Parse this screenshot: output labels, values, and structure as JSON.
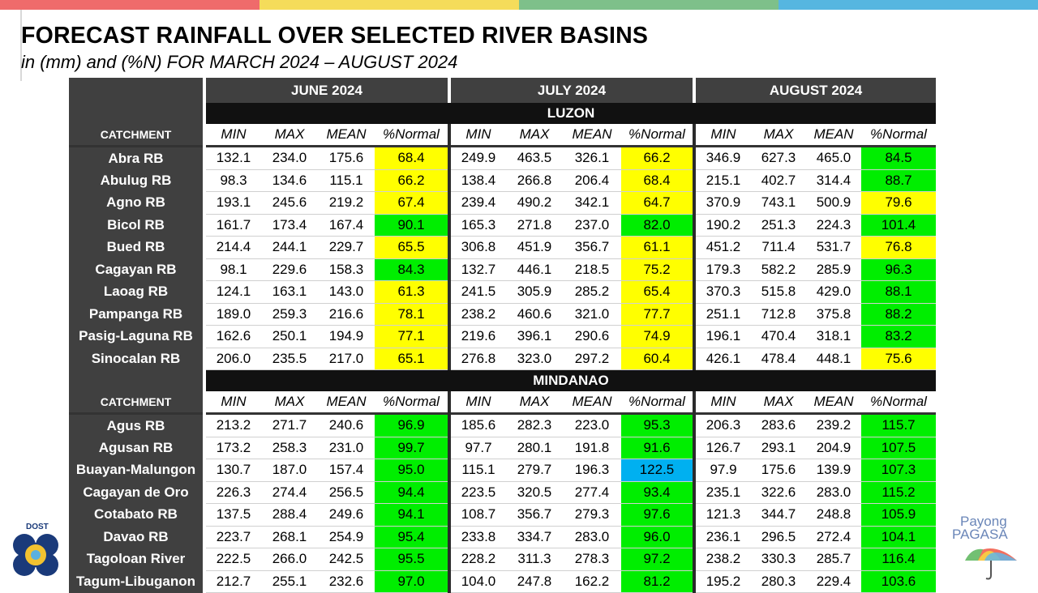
{
  "colors": {
    "topbar": [
      "#ef6b6b",
      "#f5dc5a",
      "#7ec08a",
      "#56b6e0"
    ],
    "yellow": "#ffff00",
    "green": "#00ee00",
    "blue": "#00b0f0",
    "header_gray": "#404040"
  },
  "title": "FORECAST RAINFALL OVER SELECTED RIVER BASINS",
  "subtitle": "in (mm) and (%N) FOR  MARCH 2024 – AUGUST 2024",
  "months": [
    "JUNE 2024",
    "JULY 2024",
    "AUGUST 2024"
  ],
  "col_headers": [
    "MIN",
    "MAX",
    "MEAN",
    "%Normal"
  ],
  "catchment_label": "CATCHMENT",
  "regions": [
    {
      "name": "LUZON",
      "rows": [
        {
          "name": "Abra RB",
          "values": [
            "132.1",
            "234.0",
            "175.6",
            "68.4",
            "249.9",
            "463.5",
            "326.1",
            "66.2",
            "346.9",
            "627.3",
            "465.0",
            "84.5"
          ],
          "colors": [
            "yellow",
            "yellow",
            "green"
          ]
        },
        {
          "name": "Abulug RB",
          "values": [
            "98.3",
            "134.6",
            "115.1",
            "66.2",
            "138.4",
            "266.8",
            "206.4",
            "68.4",
            "215.1",
            "402.7",
            "314.4",
            "88.7"
          ],
          "colors": [
            "yellow",
            "yellow",
            "green"
          ]
        },
        {
          "name": "Agno RB",
          "values": [
            "193.1",
            "245.6",
            "219.2",
            "67.4",
            "239.4",
            "490.2",
            "342.1",
            "64.7",
            "370.9",
            "743.1",
            "500.9",
            "79.6"
          ],
          "colors": [
            "yellow",
            "yellow",
            "yellow"
          ]
        },
        {
          "name": "Bicol RB",
          "values": [
            "161.7",
            "173.4",
            "167.4",
            "90.1",
            "165.3",
            "271.8",
            "237.0",
            "82.0",
            "190.2",
            "251.3",
            "224.3",
            "101.4"
          ],
          "colors": [
            "green",
            "green",
            "green"
          ]
        },
        {
          "name": "Bued RB",
          "values": [
            "214.4",
            "244.1",
            "229.7",
            "65.5",
            "306.8",
            "451.9",
            "356.7",
            "61.1",
            "451.2",
            "711.4",
            "531.7",
            "76.8"
          ],
          "colors": [
            "yellow",
            "yellow",
            "yellow"
          ]
        },
        {
          "name": "Cagayan RB",
          "values": [
            "98.1",
            "229.6",
            "158.3",
            "84.3",
            "132.7",
            "446.1",
            "218.5",
            "75.2",
            "179.3",
            "582.2",
            "285.9",
            "96.3"
          ],
          "colors": [
            "green",
            "yellow",
            "green"
          ]
        },
        {
          "name": "Laoag RB",
          "values": [
            "124.1",
            "163.1",
            "143.0",
            "61.3",
            "241.5",
            "305.9",
            "285.2",
            "65.4",
            "370.3",
            "515.8",
            "429.0",
            "88.1"
          ],
          "colors": [
            "yellow",
            "yellow",
            "green"
          ]
        },
        {
          "name": "Pampanga RB",
          "values": [
            "189.0",
            "259.3",
            "216.6",
            "78.1",
            "238.2",
            "460.6",
            "321.0",
            "77.7",
            "251.1",
            "712.8",
            "375.8",
            "88.2"
          ],
          "colors": [
            "yellow",
            "yellow",
            "green"
          ]
        },
        {
          "name": "Pasig-Laguna RB",
          "values": [
            "162.6",
            "250.1",
            "194.9",
            "77.1",
            "219.6",
            "396.1",
            "290.6",
            "74.9",
            "196.1",
            "470.4",
            "318.1",
            "83.2"
          ],
          "colors": [
            "yellow",
            "yellow",
            "green"
          ]
        },
        {
          "name": "Sinocalan RB",
          "values": [
            "206.0",
            "235.5",
            "217.0",
            "65.1",
            "276.8",
            "323.0",
            "297.2",
            "60.4",
            "426.1",
            "478.4",
            "448.1",
            "75.6"
          ],
          "colors": [
            "yellow",
            "yellow",
            "yellow"
          ]
        }
      ]
    },
    {
      "name": "MINDANAO",
      "rows": [
        {
          "name": "Agus RB",
          "values": [
            "213.2",
            "271.7",
            "240.6",
            "96.9",
            "185.6",
            "282.3",
            "223.0",
            "95.3",
            "206.3",
            "283.6",
            "239.2",
            "115.7"
          ],
          "colors": [
            "green",
            "green",
            "green"
          ]
        },
        {
          "name": "Agusan RB",
          "values": [
            "173.2",
            "258.3",
            "231.0",
            "99.7",
            "97.7",
            "280.1",
            "191.8",
            "91.6",
            "126.7",
            "293.1",
            "204.9",
            "107.5"
          ],
          "colors": [
            "green",
            "green",
            "green"
          ]
        },
        {
          "name": "Buayan-Malungon",
          "values": [
            "130.7",
            "187.0",
            "157.4",
            "95.0",
            "115.1",
            "279.7",
            "196.3",
            "122.5",
            "97.9",
            "175.6",
            "139.9",
            "107.3"
          ],
          "colors": [
            "green",
            "blue",
            "green"
          ]
        },
        {
          "name": "Cagayan de Oro",
          "values": [
            "226.3",
            "274.4",
            "256.5",
            "94.4",
            "223.5",
            "320.5",
            "277.4",
            "93.4",
            "235.1",
            "322.6",
            "283.0",
            "115.2"
          ],
          "colors": [
            "green",
            "green",
            "green"
          ]
        },
        {
          "name": "Cotabato RB",
          "values": [
            "137.5",
            "288.4",
            "249.6",
            "94.1",
            "108.7",
            "356.7",
            "279.3",
            "97.6",
            "121.3",
            "344.7",
            "248.8",
            "105.9"
          ],
          "colors": [
            "green",
            "green",
            "green"
          ]
        },
        {
          "name": "Davao RB",
          "values": [
            "223.7",
            "268.1",
            "254.9",
            "95.4",
            "233.8",
            "334.7",
            "283.0",
            "96.0",
            "236.1",
            "296.5",
            "272.4",
            "104.1"
          ],
          "colors": [
            "green",
            "green",
            "green"
          ]
        },
        {
          "name": "Tagoloan River",
          "values": [
            "222.5",
            "266.0",
            "242.5",
            "95.5",
            "228.2",
            "311.3",
            "278.3",
            "97.2",
            "238.2",
            "330.3",
            "285.7",
            "116.4"
          ],
          "colors": [
            "green",
            "green",
            "green"
          ]
        },
        {
          "name": "Tagum-Libuganon",
          "values": [
            "212.7",
            "255.1",
            "232.6",
            "97.0",
            "104.0",
            "247.8",
            "162.2",
            "81.2",
            "195.2",
            "280.3",
            "229.4",
            "103.6"
          ],
          "colors": [
            "green",
            "green",
            "green"
          ]
        }
      ]
    }
  ],
  "logos": {
    "dost": "DOST",
    "pagasa_line1": "Payong",
    "pagasa_line2": "PAGASA"
  }
}
